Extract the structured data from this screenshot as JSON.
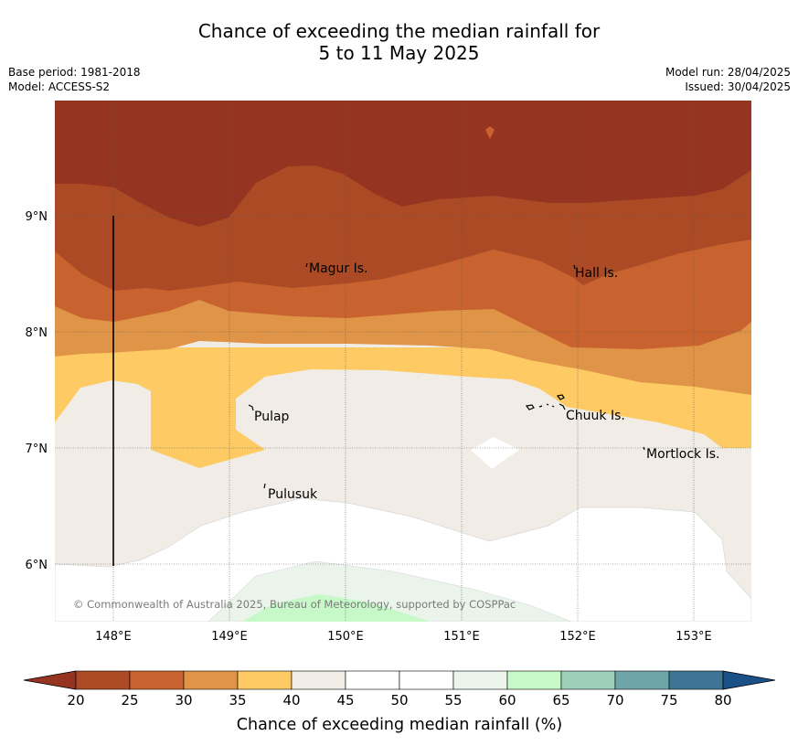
{
  "title": {
    "line1": "Chance of exceeding the median rainfall for",
    "line2": "5 to 11 May 2025"
  },
  "meta": {
    "base_period": "Base period: 1981-2018",
    "model": "Model: ACCESS-S2",
    "model_run": "Model run: 28/04/2025",
    "issued": "Issued: 30/04/2025"
  },
  "map": {
    "lat_labels": [
      "9°N",
      "8°N",
      "7°N",
      "6°N"
    ],
    "lon_labels": [
      "148°E",
      "149°E",
      "150°E",
      "151°E",
      "152°E",
      "153°E"
    ],
    "places": [
      "Magur Is.",
      "Hall Is.",
      "Pulap",
      "Chuuk Is.",
      "Mortlock Is.",
      "Pulusuk"
    ],
    "copyright": "© Commonwealth of Australia 2025, Bureau of Meteorology, supported by COSPPac"
  },
  "colorbar": {
    "ticks": [
      "20",
      "25",
      "30",
      "35",
      "40",
      "45",
      "50",
      "55",
      "60",
      "65",
      "70",
      "75",
      "80"
    ],
    "colors": [
      "#ab4a24",
      "#c8632f",
      "#df9447",
      "#fdca63",
      "#f1ede6",
      "#ffffff",
      "#ffffff",
      "#eaf4ea",
      "#c6f8c8",
      "#9ed0b9",
      "#6ea5a8",
      "#3e7596"
    ],
    "under_color": "#943421",
    "over_color": "#1b5088",
    "label": "Chance of exceeding median rainfall (%)"
  }
}
